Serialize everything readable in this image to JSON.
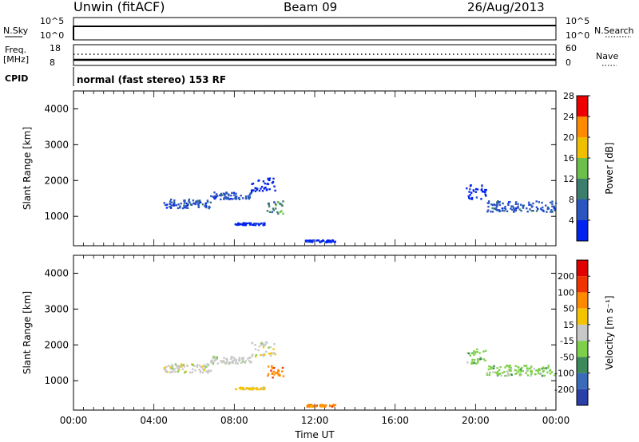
{
  "header": {
    "station": "Unwin (fitACF)",
    "beam": "Beam 09",
    "date": "26/Aug/2013"
  },
  "summary": {
    "nsky_label": "N.Sky",
    "nsky_ticks": [
      "10^5",
      "10^0"
    ],
    "nsearch_label": "N.Search",
    "nsearch_ticks": [
      "10^5",
      "10^0"
    ],
    "freq_label": "Freq.",
    "freq_unit": "[MHz]",
    "freq_ticks": [
      "18",
      "8"
    ],
    "nave_label": "Nave",
    "nave_ticks": [
      "60",
      "0"
    ],
    "cpid_label": "CPID",
    "cpid_text": "normal (fast stereo) 153 RF"
  },
  "chart_data": [
    {
      "type": "heatmap",
      "name": "power",
      "ylabel": "Slant Range [km]",
      "ylim": [
        180,
        4500
      ],
      "yticks": [
        1000,
        2000,
        3000,
        4000
      ],
      "colorbar_label": "Power [dB]",
      "colorbar_ticks": [
        "4",
        "8",
        "12",
        "16",
        "20",
        "24",
        "28"
      ],
      "colors": [
        "#0022ee",
        "#2b55c0",
        "#3b7e6e",
        "#6cc04a",
        "#f0c000",
        "#ff8a00",
        "#ee0000"
      ],
      "scatter_regions": [
        {
          "x": [
            4.4,
            6.8
          ],
          "y": [
            1250,
            1500
          ],
          "level": 1
        },
        {
          "x": [
            6.8,
            8.8
          ],
          "y": [
            1500,
            1700
          ],
          "level": 1
        },
        {
          "x": [
            8.8,
            10.0
          ],
          "y": [
            1700,
            2100
          ],
          "level": 0
        },
        {
          "x": [
            9.6,
            10.4
          ],
          "y": [
            1100,
            1450
          ],
          "level": 2
        },
        {
          "x": [
            8.0,
            9.5
          ],
          "y": [
            780,
            840
          ],
          "level": 0
        },
        {
          "x": [
            11.5,
            13.0
          ],
          "y": [
            300,
            360
          ],
          "level": 0
        },
        {
          "x": [
            19.5,
            20.5
          ],
          "y": [
            1500,
            1900
          ],
          "level": 0
        },
        {
          "x": [
            20.5,
            24.0
          ],
          "y": [
            1150,
            1450
          ],
          "level": 1
        }
      ]
    },
    {
      "type": "heatmap",
      "name": "velocity",
      "ylabel": "Slant Range [km]",
      "xlabel": "Time UT",
      "ylim": [
        180,
        4500
      ],
      "yticks": [
        1000,
        2000,
        3000,
        4000
      ],
      "xticks": [
        "00:00",
        "04:00",
        "08:00",
        "12:00",
        "16:00",
        "20:00",
        "00:00"
      ],
      "xlim": [
        0,
        24
      ],
      "colorbar_label": "Velocity [m s⁻¹]",
      "colorbar_ticks": [
        "200",
        "100",
        "50",
        "15",
        "-15",
        "-50",
        "-100",
        "-200"
      ],
      "colors": [
        "#2a3fa8",
        "#3a6aba",
        "#3c8a5a",
        "#7ed04a",
        "#c8c8c8",
        "#f5c400",
        "#ff8a00",
        "#ee3300",
        "#e00000"
      ],
      "scatter_regions": [
        {
          "x": [
            4.4,
            6.8
          ],
          "y": [
            1250,
            1500
          ],
          "level": 4
        },
        {
          "x": [
            6.8,
            8.8
          ],
          "y": [
            1500,
            1700
          ],
          "level": 4
        },
        {
          "x": [
            8.8,
            10.0
          ],
          "y": [
            1700,
            2100
          ],
          "level": 4
        },
        {
          "x": [
            9.6,
            10.4
          ],
          "y": [
            1100,
            1450
          ],
          "level": 6
        },
        {
          "x": [
            8.0,
            9.5
          ],
          "y": [
            780,
            840
          ],
          "level": 5
        },
        {
          "x": [
            11.5,
            13.0
          ],
          "y": [
            300,
            360
          ],
          "level": 6
        },
        {
          "x": [
            19.5,
            20.5
          ],
          "y": [
            1500,
            1900
          ],
          "level": 3
        },
        {
          "x": [
            20.5,
            24.0
          ],
          "y": [
            1150,
            1450
          ],
          "level": 3
        }
      ]
    }
  ]
}
